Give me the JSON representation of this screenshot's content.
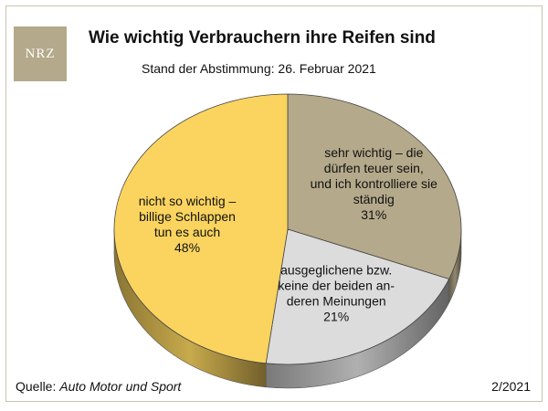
{
  "logo": {
    "text": "NRZ"
  },
  "chart_data": {
    "type": "pie",
    "title": "Wie wichtig Verbrauchern ihre Reifen sind",
    "subtitle": "Stand der Abstimmung: 26. Februar 2021",
    "slices": [
      {
        "label_lines": [
          "sehr wichtig – die",
          "dürfen teuer sein,",
          "und ich kontrolliere sie",
          "ständig"
        ],
        "value": 31,
        "value_label": "31%",
        "color": "#b4a98a"
      },
      {
        "label_lines": [
          "ausgeglichene bzw.",
          "keine der beiden an-",
          "deren Meinungen"
        ],
        "value": 21,
        "value_label": "21%",
        "color": "#dcdcdc"
      },
      {
        "label_lines": [
          "nicht so wichtig –",
          "billige Schlappen",
          "tun es auch"
        ],
        "value": 48,
        "value_label": "48%",
        "color": "#fad45f"
      }
    ]
  },
  "footer": {
    "source_prefix": "Quelle: ",
    "source_name": "Auto Motor und Sport",
    "date": "2/2021"
  }
}
